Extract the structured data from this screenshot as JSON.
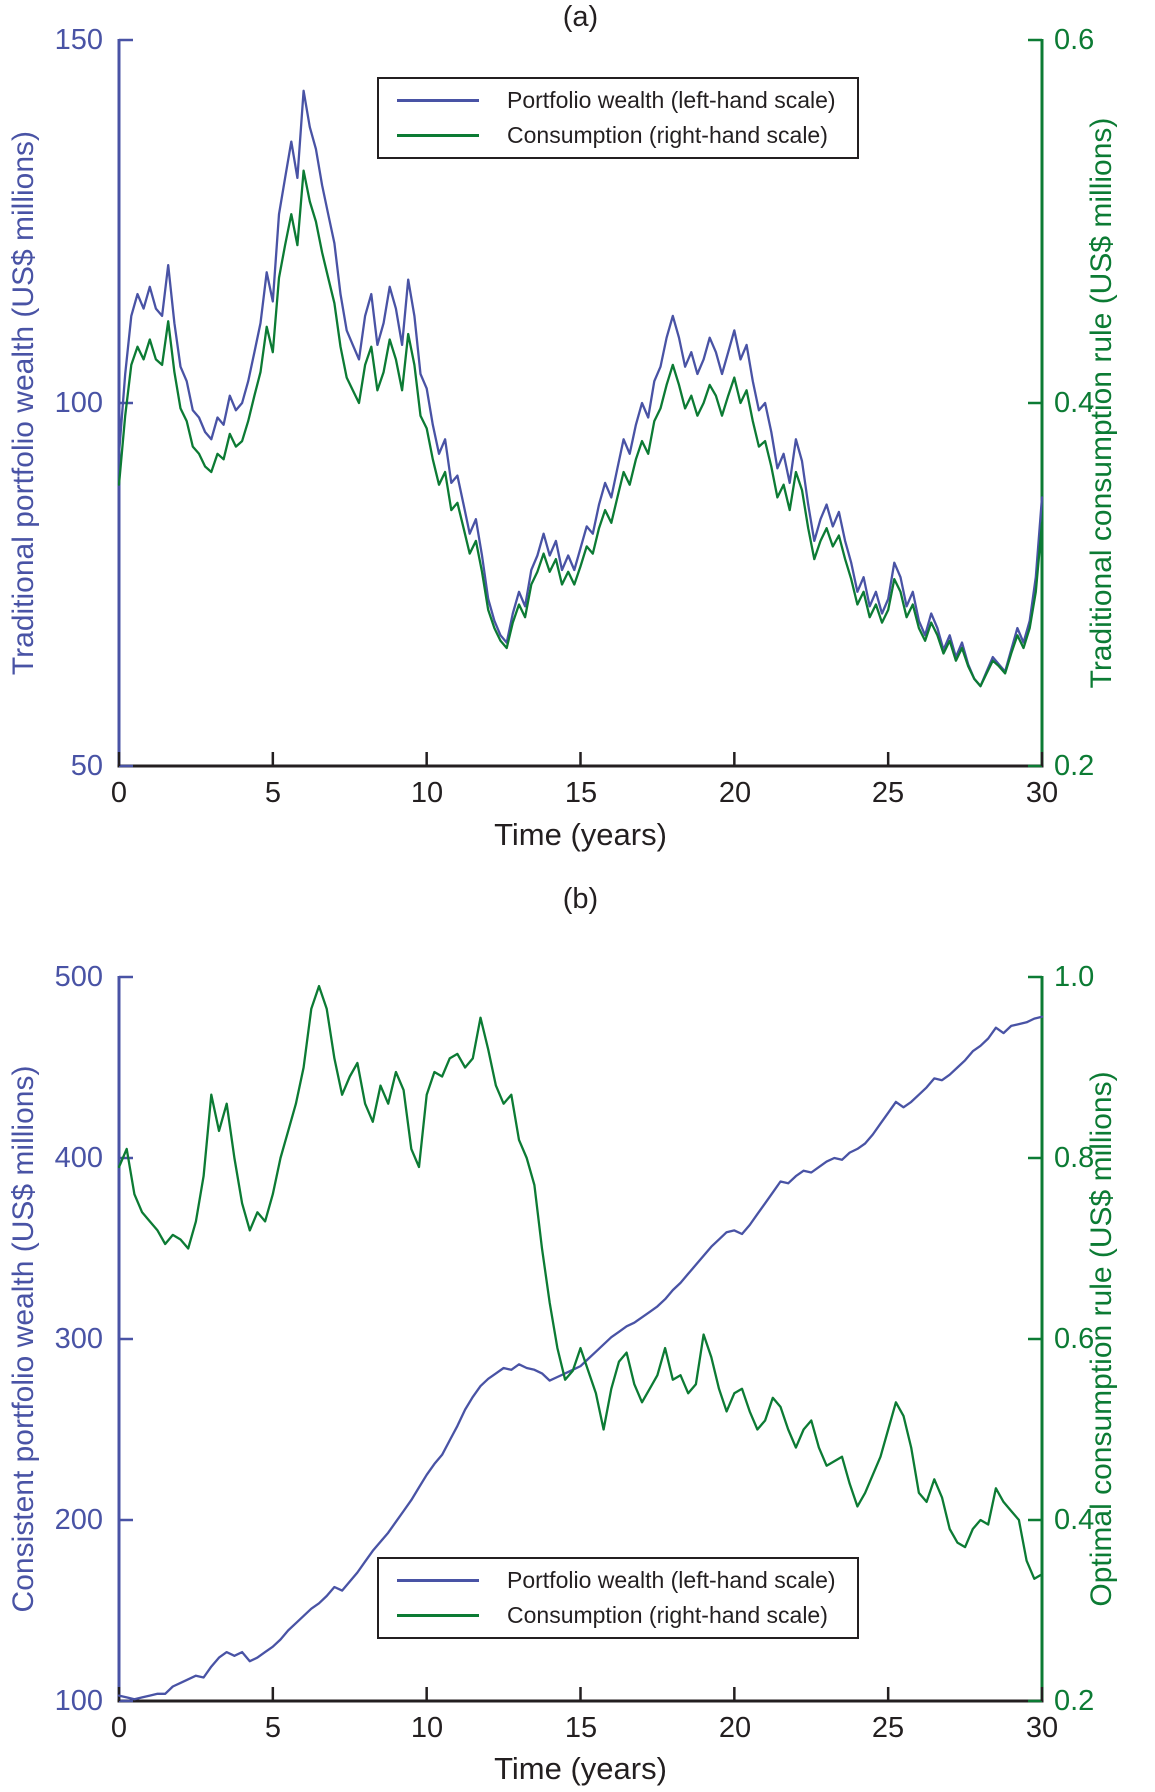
{
  "colors": {
    "wealth_line": "#4953a5",
    "consumption_line": "#0c7b34",
    "axis": "#231f20"
  },
  "chart_data": [
    {
      "type": "line",
      "title": "(a)",
      "xlabel": "Time (years)",
      "x_range": [
        0,
        30
      ],
      "x_ticks": [
        0,
        5,
        10,
        15,
        20,
        25,
        30
      ],
      "x_tick_labels": [
        "0",
        "5",
        "10",
        "15",
        "20",
        "25",
        "30"
      ],
      "grid": false,
      "legend_position": "top-center",
      "y_left": {
        "label": "Traditional portfolio wealth (US$ millions)",
        "lim": [
          50,
          150
        ],
        "ticks": [
          150,
          100,
          50
        ],
        "tick_labels": [
          "150",
          "100",
          "50"
        ],
        "color": "#4953a5"
      },
      "y_right": {
        "label": "Traditional consumption rule (US$ millions)",
        "lim": [
          0.2,
          0.6
        ],
        "ticks": [
          0.6,
          0.4,
          0.2
        ],
        "tick_labels": [
          "0.6",
          "0.4",
          "0.2"
        ],
        "color": "#0c7b34"
      },
      "series": [
        {
          "name": "Portfolio wealth (left-hand scale)",
          "axis": "left",
          "color": "#4953a5",
          "x_start": 0,
          "x_step": 0.2,
          "values": [
            93,
            104,
            112,
            115,
            113,
            116,
            113,
            112,
            119,
            111,
            105,
            103,
            99,
            98,
            96,
            95,
            98,
            97,
            101,
            99,
            100,
            103,
            107,
            111,
            118,
            114,
            126,
            131,
            136,
            131,
            143,
            138,
            135,
            130,
            126,
            122,
            115,
            110,
            108,
            106,
            112,
            115,
            108,
            111,
            116,
            113,
            108,
            117,
            112,
            104,
            102,
            97,
            93,
            95,
            89,
            90,
            86,
            82,
            84,
            79,
            73,
            70,
            68,
            67,
            71,
            74,
            72,
            77,
            79,
            82,
            79,
            81,
            77,
            79,
            77,
            80,
            83,
            82,
            86,
            89,
            87,
            91,
            95,
            93,
            97,
            100,
            98,
            103,
            105,
            109,
            112,
            109,
            105,
            107,
            104,
            106,
            109,
            107,
            104,
            107,
            110,
            106,
            108,
            103,
            99,
            100,
            96,
            91,
            93,
            89,
            95,
            92,
            86,
            81,
            84,
            86,
            83,
            85,
            81,
            78,
            74,
            76,
            72,
            74,
            71,
            73,
            78,
            76,
            72,
            74,
            70,
            68,
            71,
            69,
            66,
            68,
            65,
            67,
            64,
            62,
            61,
            63,
            65,
            64,
            63,
            66,
            69,
            67,
            70,
            76,
            87
          ]
        },
        {
          "name": "Consumption (right-hand scale)",
          "axis": "right",
          "color": "#0c7b34",
          "x_start": 0,
          "x_step": 0.2,
          "values": [
            0.355,
            0.393,
            0.421,
            0.431,
            0.424,
            0.435,
            0.424,
            0.421,
            0.445,
            0.417,
            0.397,
            0.39,
            0.376,
            0.372,
            0.365,
            0.362,
            0.372,
            0.369,
            0.383,
            0.376,
            0.379,
            0.39,
            0.404,
            0.417,
            0.442,
            0.428,
            0.469,
            0.487,
            0.504,
            0.487,
            0.528,
            0.511,
            0.5,
            0.483,
            0.469,
            0.455,
            0.431,
            0.414,
            0.407,
            0.4,
            0.421,
            0.431,
            0.407,
            0.417,
            0.435,
            0.424,
            0.407,
            0.438,
            0.421,
            0.393,
            0.386,
            0.369,
            0.355,
            0.362,
            0.341,
            0.345,
            0.331,
            0.317,
            0.324,
            0.307,
            0.286,
            0.276,
            0.269,
            0.265,
            0.279,
            0.289,
            0.282,
            0.3,
            0.307,
            0.317,
            0.307,
            0.314,
            0.3,
            0.307,
            0.3,
            0.31,
            0.321,
            0.317,
            0.331,
            0.341,
            0.334,
            0.348,
            0.362,
            0.355,
            0.369,
            0.379,
            0.372,
            0.39,
            0.397,
            0.41,
            0.421,
            0.41,
            0.397,
            0.404,
            0.393,
            0.4,
            0.41,
            0.404,
            0.393,
            0.404,
            0.414,
            0.4,
            0.407,
            0.39,
            0.376,
            0.379,
            0.365,
            0.348,
            0.355,
            0.341,
            0.362,
            0.352,
            0.331,
            0.314,
            0.324,
            0.331,
            0.321,
            0.327,
            0.314,
            0.303,
            0.289,
            0.296,
            0.282,
            0.289,
            0.279,
            0.286,
            0.303,
            0.296,
            0.282,
            0.289,
            0.276,
            0.269,
            0.279,
            0.272,
            0.262,
            0.269,
            0.258,
            0.265,
            0.255,
            0.248,
            0.244,
            0.251,
            0.258,
            0.255,
            0.251,
            0.262,
            0.272,
            0.265,
            0.276,
            0.296,
            0.334
          ]
        }
      ]
    },
    {
      "type": "line",
      "title": "(b)",
      "xlabel": "Time (years)",
      "x_range": [
        0,
        30
      ],
      "x_ticks": [
        0,
        5,
        10,
        15,
        20,
        25,
        30
      ],
      "x_tick_labels": [
        "0",
        "5",
        "10",
        "15",
        "20",
        "25",
        "30"
      ],
      "grid": false,
      "legend_position": "bottom-center",
      "y_left": {
        "label": "Consistent portfolio wealth (US$ millions)",
        "lim": [
          100,
          500
        ],
        "ticks": [
          500,
          400,
          300,
          200,
          100
        ],
        "tick_labels": [
          "500",
          "400",
          "300",
          "200",
          "100"
        ],
        "color": "#4953a5"
      },
      "y_right": {
        "label": "Optimal consumption rule (US$ millions)",
        "lim": [
          0.2,
          1.0
        ],
        "ticks": [
          1.0,
          0.8,
          0.6,
          0.4,
          0.2
        ],
        "tick_labels": [
          "1.0",
          "0.8",
          "0.6",
          "0.4",
          "0.2"
        ],
        "color": "#0c7b34"
      },
      "series": [
        {
          "name": "Portfolio wealth (left-hand scale)",
          "axis": "left",
          "color": "#4953a5",
          "x_start": 0,
          "x_step": 0.25,
          "values": [
            103,
            102,
            101,
            102,
            103,
            104,
            104,
            108,
            110,
            112,
            114,
            113,
            119,
            124,
            127,
            125,
            127,
            122,
            124,
            127,
            130,
            134,
            139,
            143,
            147,
            151,
            154,
            158,
            163,
            161,
            166,
            171,
            177,
            183,
            188,
            193,
            199,
            205,
            211,
            218,
            225,
            231,
            236,
            244,
            252,
            261,
            268,
            274,
            278,
            281,
            284,
            283,
            286,
            284,
            283,
            281,
            277,
            279,
            281,
            283,
            285,
            289,
            293,
            297,
            301,
            304,
            307,
            309,
            312,
            315,
            318,
            322,
            327,
            331,
            336,
            341,
            346,
            351,
            355,
            359,
            360,
            358,
            363,
            369,
            375,
            381,
            387,
            386,
            390,
            393,
            392,
            395,
            398,
            400,
            399,
            403,
            405,
            408,
            413,
            419,
            425,
            431,
            428,
            431,
            435,
            439,
            444,
            443,
            446,
            450,
            454,
            459,
            462,
            466,
            472,
            469,
            473,
            474,
            475,
            477,
            478
          ]
        },
        {
          "name": "Consumption (right-hand scale)",
          "axis": "right",
          "color": "#0c7b34",
          "x_start": 0,
          "x_step": 0.25,
          "values": [
            0.79,
            0.81,
            0.76,
            0.74,
            0.73,
            0.72,
            0.705,
            0.715,
            0.71,
            0.7,
            0.73,
            0.78,
            0.87,
            0.83,
            0.86,
            0.8,
            0.75,
            0.72,
            0.74,
            0.73,
            0.76,
            0.8,
            0.83,
            0.86,
            0.9,
            0.965,
            0.99,
            0.965,
            0.91,
            0.87,
            0.89,
            0.905,
            0.86,
            0.84,
            0.88,
            0.86,
            0.895,
            0.875,
            0.81,
            0.79,
            0.87,
            0.895,
            0.89,
            0.91,
            0.915,
            0.9,
            0.91,
            0.955,
            0.92,
            0.88,
            0.86,
            0.87,
            0.82,
            0.8,
            0.77,
            0.7,
            0.64,
            0.59,
            0.555,
            0.565,
            0.59,
            0.565,
            0.54,
            0.5,
            0.545,
            0.575,
            0.585,
            0.55,
            0.53,
            0.545,
            0.56,
            0.59,
            0.555,
            0.56,
            0.54,
            0.55,
            0.605,
            0.58,
            0.545,
            0.52,
            0.54,
            0.545,
            0.52,
            0.5,
            0.51,
            0.535,
            0.525,
            0.5,
            0.48,
            0.5,
            0.51,
            0.48,
            0.46,
            0.465,
            0.47,
            0.44,
            0.415,
            0.43,
            0.45,
            0.47,
            0.5,
            0.53,
            0.515,
            0.48,
            0.43,
            0.42,
            0.445,
            0.425,
            0.39,
            0.375,
            0.37,
            0.39,
            0.4,
            0.395,
            0.435,
            0.42,
            0.41,
            0.4,
            0.355,
            0.335,
            0.34
          ]
        }
      ]
    }
  ]
}
